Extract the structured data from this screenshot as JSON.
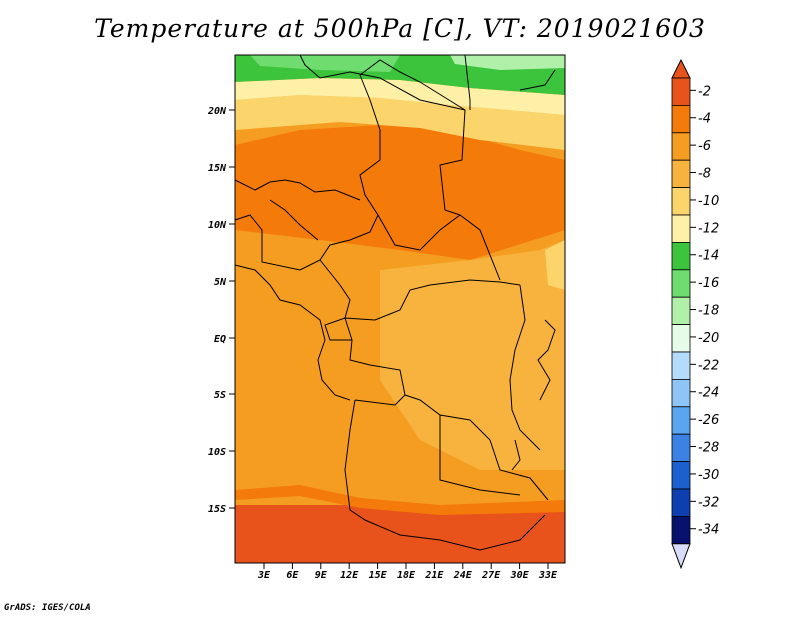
{
  "title": "Temperature at 500hPa [C], VT: 2019021603",
  "credit": "GrADS: IGES/COLA",
  "lat_labels": [
    "20N",
    "15N",
    "10N",
    "5N",
    "EQ",
    "5S",
    "10S",
    "15S"
  ],
  "lon_labels": [
    "3E",
    "6E",
    "9E",
    "12E",
    "15E",
    "18E",
    "21E",
    "24E",
    "27E",
    "30E",
    "33E"
  ],
  "colorbar": {
    "labels": [
      "-2",
      "-4",
      "-6",
      "-8",
      "-10",
      "-12",
      "-14",
      "-16",
      "-18",
      "-20",
      "-22",
      "-24",
      "-26",
      "-28",
      "-30",
      "-32",
      "-34"
    ],
    "colors": [
      "#e8531b",
      "#f47a09",
      "#f59d21",
      "#f7b33d",
      "#fbd56b",
      "#fff0a8",
      "#3cc43c",
      "#6fdc6f",
      "#b0f0a8",
      "#e6fbe8",
      "#b4dbfa",
      "#8fc4f6",
      "#5aa5ef",
      "#3b82e4",
      "#1c5fce",
      "#0d3fb0",
      "#08126e"
    ],
    "top_color": "#e8531b",
    "bottom_color": "#d8dcf8"
  },
  "map_colors": {
    "warm": "#e8531b",
    "orange": "#f59d21",
    "orange_light": "#f7b33d",
    "yellow": "#fbd56b",
    "cream": "#fff0a8",
    "green": "#3cc43c",
    "green_mid": "#6fdc6f",
    "green_light": "#b0f0a8",
    "border": "#000000"
  }
}
